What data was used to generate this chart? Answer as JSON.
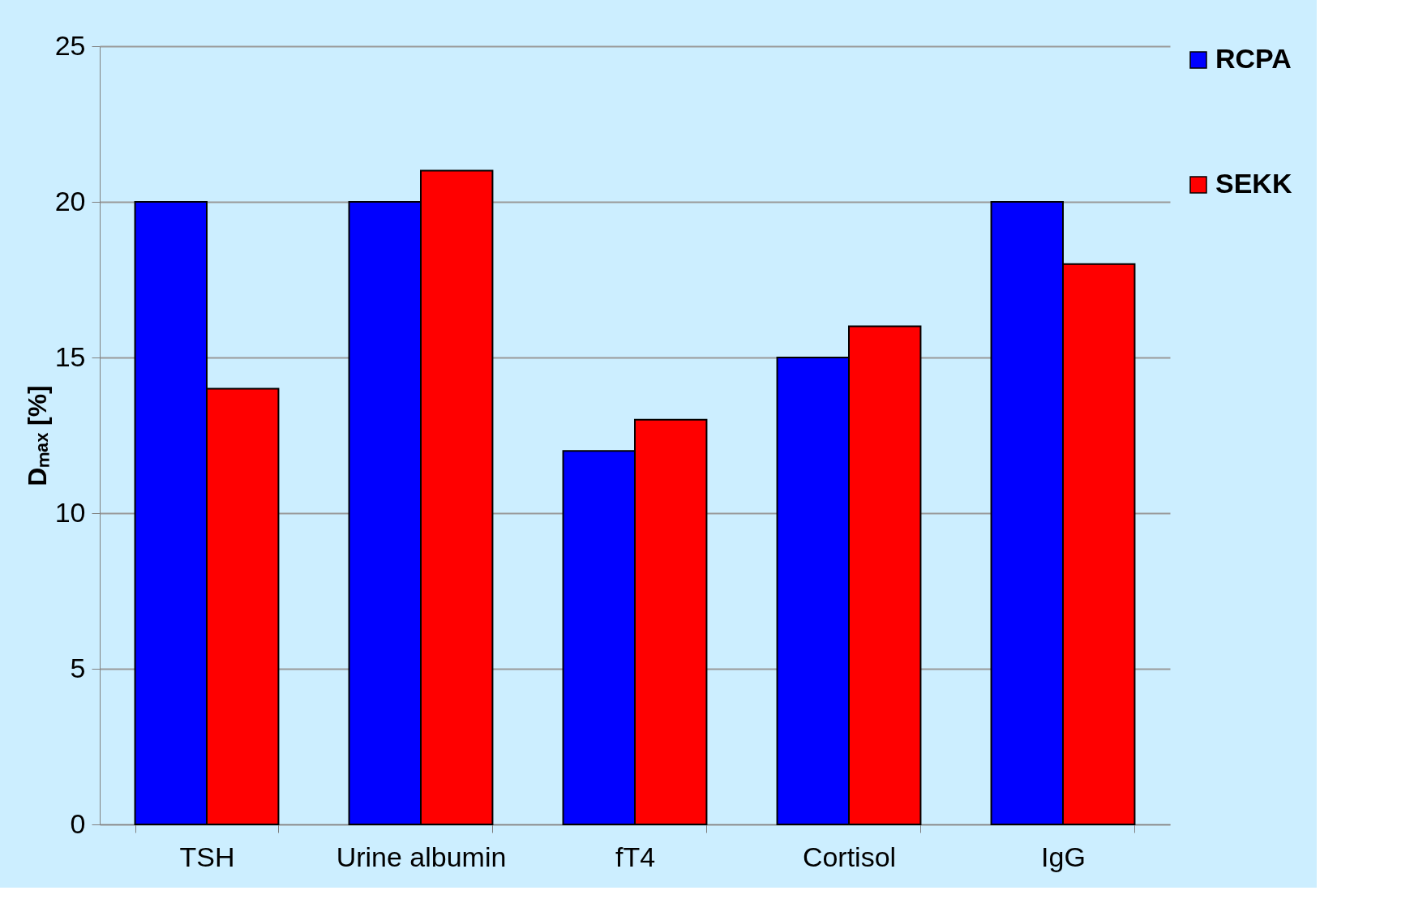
{
  "chart_data": {
    "type": "bar",
    "ylabel": "Dₘₐₓ [%]",
    "categories": [
      "TSH",
      "Urine albumin",
      "fT4",
      "Cortisol",
      "IgG"
    ],
    "series": [
      {
        "name": "RCPA",
        "color": "#0000ff",
        "values": [
          20,
          20,
          12,
          15,
          20
        ]
      },
      {
        "name": "SEKK",
        "color": "#ff0000",
        "values": [
          14,
          21,
          13,
          16,
          18
        ]
      }
    ],
    "ylim": [
      0,
      25
    ],
    "yticks": [
      0,
      5,
      10,
      15,
      20,
      25
    ],
    "grid": "y",
    "legend": "right"
  }
}
